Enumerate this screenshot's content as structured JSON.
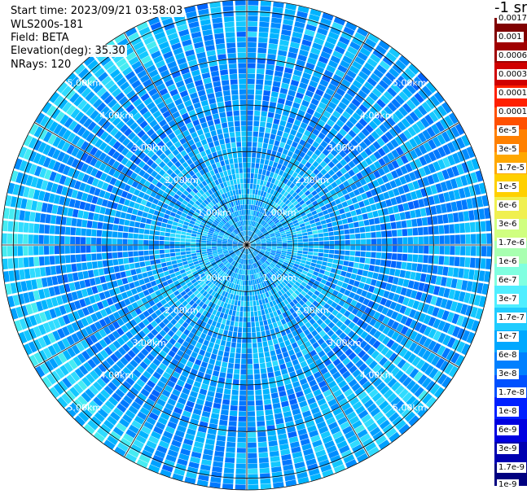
{
  "header": {
    "start_time": "Start time: 2023/09/21 03:58:03",
    "instrument": "WLS200s-181",
    "field": "Field: BETA",
    "elevation": "Elevation(deg): 35.30",
    "nrays": "NRays: 120"
  },
  "unit_label": "-1 sr",
  "colorbar": {
    "colors": [
      "#000080",
      "#0000b0",
      "#0000e0",
      "#0020ff",
      "#0050ff",
      "#0080ff",
      "#00a8ff",
      "#20ccff",
      "#50eeff",
      "#80ffe0",
      "#a8ffb0",
      "#d0ff80",
      "#f0f050",
      "#ffd000",
      "#ffa800",
      "#ff8000",
      "#ff5000",
      "#ff2000",
      "#d00000",
      "#a00000",
      "#800000"
    ],
    "labels": [
      "0.0017",
      "0.001",
      "0.0006",
      "0.0003",
      "0.00017",
      "0.0001",
      "6e-5",
      "3e-5",
      "1.7e-5",
      "1e-5",
      "6e-6",
      "3e-6",
      "1.7e-6",
      "1e-6",
      "6e-7",
      "3e-7",
      "1.7e-7",
      "1e-7",
      "6e-8",
      "3e-8",
      "1.7e-8",
      "1e-8",
      "6e-9",
      "3e-9",
      "1.7e-9",
      "1e-9"
    ]
  },
  "plot": {
    "n_rays": 120,
    "max_range_km": 5.25,
    "ring_labels": [
      "1.00km",
      "2.00km",
      "3.00km",
      "4.00km",
      "5.00km"
    ]
  }
}
